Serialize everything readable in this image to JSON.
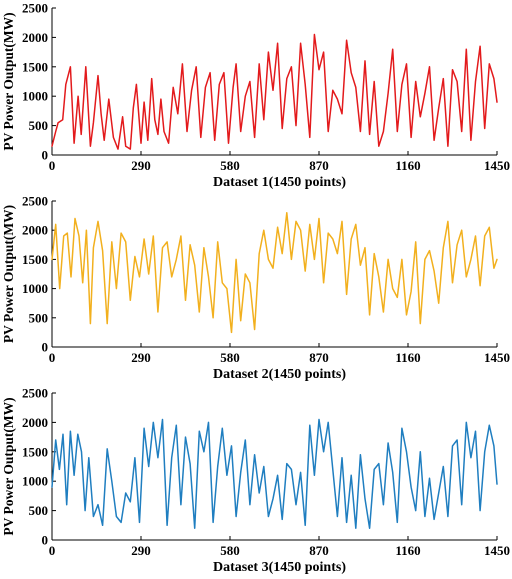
{
  "chart_data": [
    {
      "type": "line",
      "xlabel": "Dataset 1(1450 points)",
      "ylabel": "PV Power Output(MW)",
      "xlim": [
        0,
        1450
      ],
      "ylim": [
        0,
        2500
      ],
      "xticks": [
        "0",
        "290",
        "580",
        "870",
        "1160",
        "1450"
      ],
      "yticks": [
        "0",
        "500",
        "1000",
        "1500",
        "2000",
        "2500"
      ],
      "color": "#e31a1c",
      "series": [
        {
          "x": [
            0,
            12,
            20,
            35,
            45,
            60,
            72,
            85,
            95,
            110,
            125,
            135,
            150,
            160,
            170,
            185,
            200,
            215,
            230,
            240,
            255,
            265,
            275,
            290,
            300,
            312,
            325,
            335,
            345,
            355,
            365,
            380,
            395,
            410,
            425,
            440,
            455,
            470,
            485,
            500,
            515,
            530,
            545,
            560,
            575,
            590,
            600,
            615,
            630,
            645,
            660,
            675,
            690,
            705,
            720,
            735,
            750,
            765,
            780,
            795,
            810,
            825,
            840,
            855,
            870,
            885,
            900,
            915,
            930,
            945,
            960,
            975,
            990,
            1005,
            1020,
            1035,
            1050,
            1065,
            1080,
            1095,
            1110,
            1125,
            1140,
            1155,
            1170,
            1185,
            1200,
            1215,
            1230,
            1245,
            1260,
            1275,
            1290,
            1305,
            1320,
            1335,
            1350,
            1365,
            1380,
            1395,
            1410,
            1425,
            1440,
            1450
          ],
          "y": [
            150,
            400,
            550,
            600,
            1200,
            1500,
            200,
            1000,
            350,
            1500,
            150,
            550,
            1350,
            700,
            250,
            950,
            300,
            100,
            650,
            150,
            100,
            800,
            1200,
            200,
            900,
            250,
            1300,
            600,
            350,
            950,
            400,
            200,
            1150,
            700,
            1550,
            400,
            1100,
            1500,
            300,
            1150,
            1400,
            250,
            1200,
            1400,
            200,
            1150,
            1550,
            400,
            1000,
            1250,
            300,
            1550,
            600,
            1750,
            1100,
            1900,
            450,
            1300,
            1500,
            500,
            1900,
            1200,
            300,
            2050,
            1450,
            1750,
            400,
            1100,
            950,
            700,
            1950,
            1400,
            1150,
            400,
            1600,
            350,
            1250,
            150,
            400,
            1050,
            1800,
            400,
            1200,
            1550,
            300,
            1250,
            650,
            1050,
            1500,
            250,
            800,
            1300,
            150,
            1450,
            1250,
            400,
            1800,
            250,
            1250,
            1850,
            450,
            1550,
            1300,
            900
          ]
        }
      ]
    },
    {
      "type": "line",
      "xlabel": "Dataset 2(1450 points)",
      "ylabel": "PV Power Output(MW)",
      "xlim": [
        0,
        1450
      ],
      "ylim": [
        0,
        2500
      ],
      "xticks": [
        "0",
        "290",
        "580",
        "870",
        "1160",
        "1450"
      ],
      "yticks": [
        "0",
        "500",
        "1000",
        "1500",
        "2000",
        "2500"
      ],
      "color": "#f2b01e",
      "series": [
        {
          "x": [
            0,
            12,
            25,
            38,
            50,
            62,
            75,
            88,
            100,
            112,
            125,
            135,
            150,
            165,
            180,
            195,
            210,
            225,
            240,
            255,
            270,
            285,
            300,
            315,
            330,
            345,
            360,
            375,
            390,
            405,
            420,
            435,
            450,
            465,
            480,
            495,
            510,
            525,
            540,
            555,
            570,
            585,
            600,
            615,
            630,
            645,
            660,
            675,
            690,
            705,
            720,
            735,
            750,
            765,
            780,
            795,
            810,
            825,
            840,
            855,
            870,
            885,
            900,
            915,
            930,
            945,
            960,
            975,
            990,
            1005,
            1020,
            1035,
            1050,
            1065,
            1080,
            1095,
            1110,
            1125,
            1140,
            1155,
            1170,
            1185,
            1200,
            1215,
            1230,
            1245,
            1260,
            1275,
            1290,
            1305,
            1320,
            1335,
            1350,
            1365,
            1380,
            1395,
            1410,
            1425,
            1440,
            1450
          ],
          "y": [
            1500,
            2100,
            1000,
            1900,
            1950,
            1200,
            2200,
            1900,
            1100,
            2000,
            400,
            1700,
            2150,
            1650,
            400,
            1800,
            1000,
            1950,
            1800,
            800,
            1550,
            1200,
            1850,
            1250,
            1900,
            600,
            1700,
            1800,
            1200,
            1500,
            1900,
            800,
            1750,
            1400,
            600,
            1700,
            1200,
            500,
            1800,
            1100,
            1000,
            250,
            1500,
            450,
            1250,
            1100,
            300,
            1600,
            2000,
            1500,
            1350,
            2050,
            1600,
            2300,
            1500,
            2150,
            2000,
            1300,
            2100,
            1500,
            2200,
            1100,
            1950,
            1850,
            1600,
            2150,
            900,
            1850,
            2100,
            1400,
            1700,
            550,
            1600,
            1200,
            600,
            1500,
            1000,
            850,
            1500,
            550,
            950,
            1800,
            400,
            1500,
            1650,
            1300,
            750,
            1700,
            2150,
            1100,
            1750,
            2000,
            1200,
            1500,
            1900,
            1050,
            1900,
            2050,
            1350,
            1500
          ]
        }
      ]
    },
    {
      "type": "line",
      "xlabel": "Dataset 3(1450 points)",
      "ylabel": "PV Power Output(MW)",
      "xlim": [
        0,
        1450
      ],
      "ylim": [
        0,
        2500
      ],
      "xticks": [
        "0",
        "290",
        "580",
        "870",
        "1160",
        "1450"
      ],
      "yticks": [
        "0",
        "500",
        "1000",
        "1500",
        "2000",
        "2500"
      ],
      "color": "#1f7ec0",
      "series": [
        {
          "x": [
            0,
            12,
            24,
            36,
            48,
            60,
            72,
            84,
            96,
            108,
            120,
            135,
            150,
            165,
            180,
            195,
            210,
            225,
            240,
            255,
            270,
            285,
            300,
            315,
            330,
            345,
            360,
            375,
            390,
            405,
            420,
            435,
            450,
            465,
            480,
            495,
            510,
            525,
            540,
            555,
            570,
            585,
            600,
            615,
            630,
            645,
            660,
            675,
            690,
            705,
            720,
            735,
            750,
            765,
            780,
            795,
            810,
            825,
            840,
            855,
            870,
            885,
            900,
            915,
            930,
            945,
            960,
            975,
            990,
            1005,
            1020,
            1035,
            1050,
            1065,
            1080,
            1095,
            1110,
            1125,
            1140,
            1155,
            1170,
            1185,
            1200,
            1215,
            1230,
            1245,
            1260,
            1275,
            1290,
            1305,
            1320,
            1335,
            1350,
            1365,
            1380,
            1395,
            1410,
            1425,
            1440,
            1450
          ],
          "y": [
            900,
            1700,
            1200,
            1800,
            600,
            1850,
            1100,
            1800,
            1500,
            500,
            1400,
            400,
            600,
            250,
            1550,
            1000,
            400,
            300,
            800,
            650,
            1400,
            300,
            1900,
            1250,
            2000,
            1400,
            2050,
            250,
            1400,
            1950,
            600,
            1750,
            1300,
            200,
            1850,
            1500,
            2000,
            300,
            1250,
            1900,
            1100,
            1600,
            400,
            1150,
            1700,
            600,
            1450,
            800,
            1250,
            400,
            700,
            1100,
            350,
            1300,
            1200,
            600,
            1150,
            250,
            1950,
            1100,
            2050,
            1500,
            2000,
            1200,
            400,
            1400,
            300,
            1100,
            200,
            1450,
            700,
            200,
            1200,
            1300,
            600,
            1650,
            1150,
            300,
            1900,
            1500,
            900,
            500,
            1500,
            400,
            1050,
            350,
            800,
            1250,
            400,
            1600,
            1700,
            600,
            2000,
            1400,
            1850,
            500,
            1500,
            1950,
            1600,
            950
          ]
        }
      ]
    }
  ]
}
